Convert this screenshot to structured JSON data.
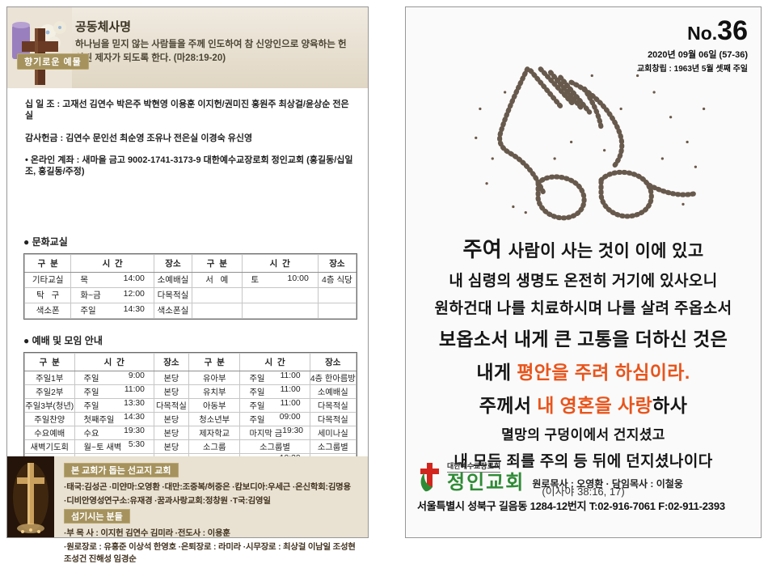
{
  "left_page": {
    "header": {
      "badge": "향기로운 예물",
      "title": "공동체사명",
      "body": "하나님을 믿지 않는 사람들을 주께 인도하여 참 신앙인으로 양육하는 헌신된 제자가 되도록 한다. (마28:19-20)"
    },
    "giving": {
      "tithe_line": "십 일 조 : 고재선 김연수 박은주 박현영 이용훈 이지헌/권미진  홍원주 최상걸/윤상순 전은실",
      "thanks_line": "감사헌금 : 김연수 문인선 최순영 조유나 전은실 이경숙 유신영",
      "online_line": "• 온라인 계좌 : 새마을 금고 9002-1741-3173-9 대한예수교장로회 정인교회 (홍길동/십일조, 홍길동/주정)"
    },
    "culture": {
      "title": "● 문화교실",
      "headers": [
        "구  분",
        "시  간",
        "장소",
        "구  분",
        "시  간",
        "장소"
      ],
      "rows": [
        [
          {
            "t": "기타교실"
          },
          {
            "d": "목",
            "m": "14:00"
          },
          {
            "t": "소예배실"
          },
          {
            "t": "서   예"
          },
          {
            "d": "토",
            "m": "10:00"
          },
          {
            "t": "4층 식당"
          }
        ],
        [
          {
            "t": "탁   구"
          },
          {
            "d": "화~금",
            "m": "12:00"
          },
          {
            "t": "다목적실"
          },
          {
            "t": ""
          },
          {
            "t": ""
          },
          {
            "t": ""
          }
        ],
        [
          {
            "t": "색소폰"
          },
          {
            "d": "주일",
            "m": "14:30"
          },
          {
            "t": "색소폰실"
          },
          {
            "t": ""
          },
          {
            "t": ""
          },
          {
            "t": ""
          }
        ]
      ]
    },
    "worship": {
      "title": "● 예배 및 모임 안내",
      "headers": [
        "구  분",
        "시  간",
        "장소",
        "구  분",
        "시  간",
        "장소"
      ],
      "rows": [
        [
          {
            "t": "주일1부"
          },
          {
            "d": "주일",
            "m": "9:00"
          },
          {
            "t": "본당"
          },
          {
            "t": "유아부"
          },
          {
            "d": "주일",
            "m": "11:00"
          },
          {
            "t": "4층 한아름방"
          }
        ],
        [
          {
            "t": "주일2부"
          },
          {
            "d": "주일",
            "m": "11:00"
          },
          {
            "t": "본당"
          },
          {
            "t": "유치부"
          },
          {
            "d": "주일",
            "m": "11:00"
          },
          {
            "t": "소예배실"
          }
        ],
        [
          {
            "t": "주일3부(청년)"
          },
          {
            "d": "주일",
            "m": "13:30"
          },
          {
            "t": "다목적실"
          },
          {
            "t": "아동부"
          },
          {
            "d": "주일",
            "m": "11:00"
          },
          {
            "t": "다목적실"
          }
        ],
        [
          {
            "t": "주일찬양"
          },
          {
            "d": "첫째주일",
            "m": "14:30"
          },
          {
            "t": "본당"
          },
          {
            "t": "청소년부"
          },
          {
            "d": "주일",
            "m": "09:00"
          },
          {
            "t": "다목적실"
          }
        ],
        [
          {
            "t": "수요예배"
          },
          {
            "d": "수요",
            "m": "19:30"
          },
          {
            "t": "본당"
          },
          {
            "t": "제자학교"
          },
          {
            "d": "마지막 금",
            "m": "19:30"
          },
          {
            "t": "세미나실"
          }
        ],
        [
          {
            "t": "새벽기도회"
          },
          {
            "d": "월~토 새벽",
            "m": "5:30"
          },
          {
            "t": "본당"
          },
          {
            "t": "소그룹"
          },
          {
            "t": "소그룹별"
          },
          {
            "t": "소그룹별"
          }
        ],
        [
          {
            "t": "중보기도"
          },
          {
            "t": "주일1,2부 및 수요일"
          },
          {
            "t": "기도실"
          },
          {
            "t": "소그룹 간사"
          },
          {
            "d": "금요일",
            "m": "10:30"
          },
          {
            "t": "소예배실"
          }
        ],
        [
          {
            "t": "소그룹리더"
          },
          {
            "d": "마지막주",
            "m": "14:30"
          },
          {
            "t": "세미나실"
          },
          {
            "t": "일대일"
          },
          {
            "t": "개인별",
            "cs": 2
          }
        ]
      ]
    },
    "footer": {
      "badge_missions": "본 교회가 돕는 선교지 교회",
      "missions_lines": [
        "·태국:김성곤   ·미얀마:오영환   ·대만:조중복/허중은   ·캄보디아:우세근   ·온신학회:김명용",
        "·디비안영성연구소:유재경   ·꿈과사랑교회:정창원   ·T국:김영일"
      ],
      "badge_serving": "섬기시는 분들",
      "serving_lines": [
        "·부 목 사 : 이지헌 김연수 김미라   ·전도사 : 이용훈",
        "·원로장로 : 유홍준 이상석 한영호   ·은퇴장로 : 라미라   ·시무장로 : 최상걸 이남일 조성현 조성건 진해성 임경순"
      ]
    }
  },
  "right_page": {
    "issue": {
      "prefix": "No.",
      "number": "36",
      "date": "2020년 09월 06일 (57-36)",
      "founded": "교회창립 : 1963년 5월 셋째 주일"
    },
    "verse": {
      "lines": [
        {
          "cls": "v1",
          "segs": [
            {
              "t": "주여 ",
              "em": true
            },
            {
              "t": "사람이 사는 것이 이에 있고"
            }
          ]
        },
        {
          "cls": "v2",
          "segs": [
            {
              "t": "내 심령의 생명도 온전히 거기에 있사오니"
            }
          ]
        },
        {
          "cls": "v2",
          "segs": [
            {
              "t": "원하건대 나를 치료하시며 나를 살려 주옵소서"
            }
          ]
        },
        {
          "cls": "v3",
          "segs": [
            {
              "t": "보옵소서 내게 큰 고통을 더하신 것은"
            }
          ]
        },
        {
          "cls": "v3",
          "segs": [
            {
              "t": "내게 "
            },
            {
              "t": "평안을 주려 하심이라.",
              "hl": true
            }
          ]
        },
        {
          "cls": "v3",
          "segs": [
            {
              "t": "주께서 "
            },
            {
              "t": "내 영혼을 사랑",
              "hl": true
            },
            {
              "t": "하사"
            }
          ]
        },
        {
          "cls": "v4",
          "segs": [
            {
              "t": "멸망의 구덩이에서 건지셨고"
            }
          ]
        },
        {
          "cls": "v2",
          "segs": [
            {
              "t": "내 모든 죄를 주의 등 뒤에 던지셨나이다"
            }
          ]
        }
      ],
      "reference": "(이사야 38:16, 17)"
    },
    "church": {
      "denomination": "대한예수교장로회",
      "name": "정인교회",
      "pastors": "원로목사 : 오영환  · 담임목사 : 이철웅",
      "address": "서울특별시 성북구 길음동 1284-12번지 T:02-916-7061 F:02-911-2393"
    }
  },
  "colors": {
    "accent_orange": "#e8541b",
    "brand_green": "#2e8b35",
    "logo_red": "#d2251e",
    "badge_tan": "#a5925d",
    "band_beige": "#e9e1d1"
  }
}
